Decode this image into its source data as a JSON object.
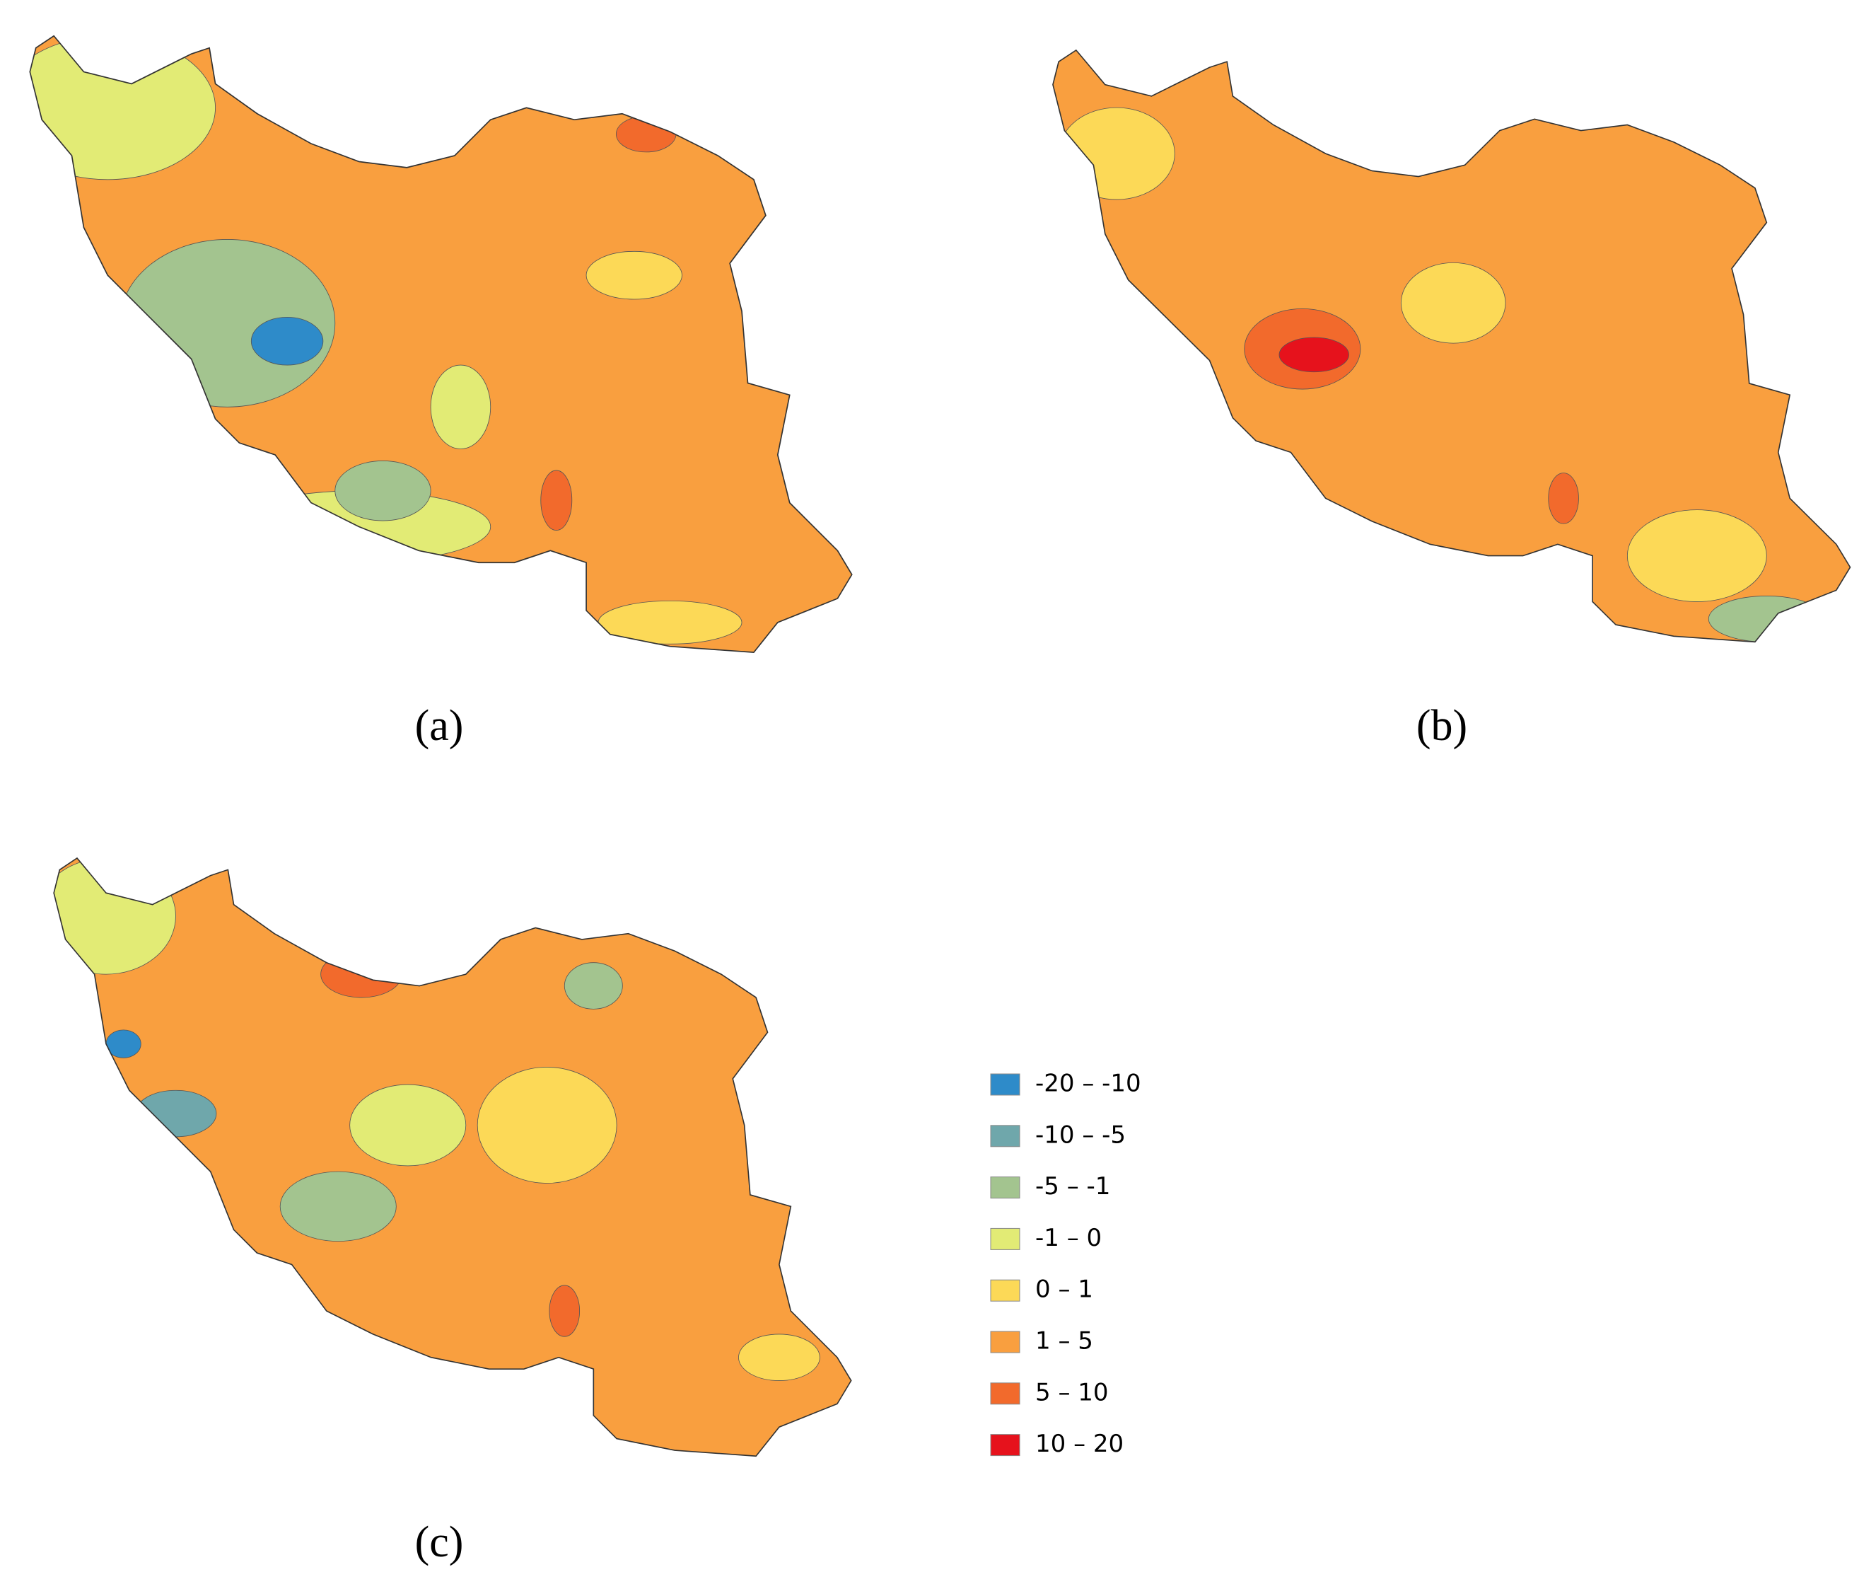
{
  "panels": [
    {
      "label": "(a)"
    },
    {
      "label": "(b)"
    },
    {
      "label": "(c)"
    }
  ],
  "legend": {
    "items": [
      {
        "label": "-20 – -10",
        "color": "#2e8bc9"
      },
      {
        "label": "-10 – -5",
        "color": "#6fa7ab"
      },
      {
        "label": "-5 – -1",
        "color": "#a3c48f"
      },
      {
        "label": "-1 – 0",
        "color": "#e2eb75"
      },
      {
        "label": "0 – 1",
        "color": "#fcd957"
      },
      {
        "label": "1 – 5",
        "color": "#f99f3f"
      },
      {
        "label": "5 – 10",
        "color": "#f26a2c"
      },
      {
        "label": "10 – 20",
        "color": "#e6121c"
      }
    ]
  }
}
